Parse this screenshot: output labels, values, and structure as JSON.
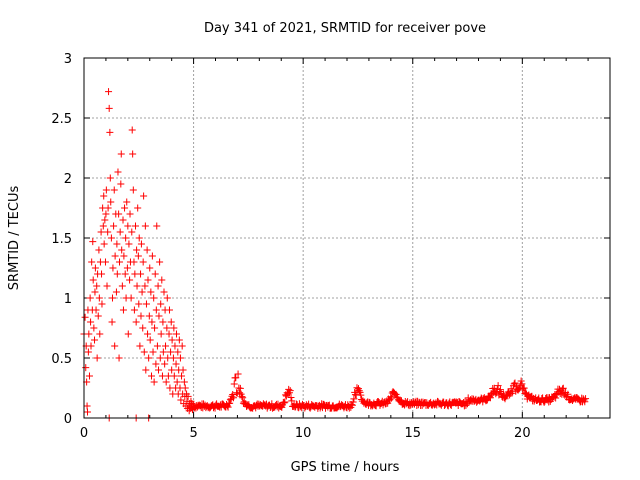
{
  "chart_data": {
    "type": "scatter",
    "title": "Day 341 of 2021, SRMTID for receiver pove",
    "xlabel": "GPS time / hours",
    "ylabel": "SRMTID / TECUs",
    "xlim": [
      0,
      24
    ],
    "ylim": [
      0,
      3
    ],
    "xticks": [
      0,
      5,
      10,
      15,
      20
    ],
    "xtick_labels": [
      "0",
      "5",
      "10",
      "15",
      "20"
    ],
    "yticks": [
      0,
      0.5,
      1,
      1.5,
      2,
      2.5,
      3
    ],
    "ytick_labels": [
      "0",
      "0.5",
      "1",
      "1.5",
      "2",
      "2.5",
      "3"
    ],
    "grid": true,
    "marker": "+",
    "color": "#ff0000",
    "series": [
      {
        "name": "SRMTID",
        "points": [
          [
            0.0,
            0.7
          ],
          [
            0.05,
            0.84
          ],
          [
            0.08,
            0.42
          ],
          [
            0.1,
            0.6
          ],
          [
            0.12,
            0.3
          ],
          [
            0.14,
            0.1
          ],
          [
            0.16,
            0.05
          ],
          [
            0.18,
            0.9
          ],
          [
            0.2,
            0.55
          ],
          [
            0.22,
            0.7
          ],
          [
            0.25,
            0.35
          ],
          [
            0.28,
            1.0
          ],
          [
            0.3,
            0.8
          ],
          [
            0.32,
            0.6
          ],
          [
            0.35,
            1.3
          ],
          [
            0.38,
            0.9
          ],
          [
            0.4,
            1.47
          ],
          [
            0.42,
            1.15
          ],
          [
            0.45,
            0.75
          ],
          [
            0.48,
            0.65
          ],
          [
            0.5,
            1.05
          ],
          [
            0.52,
            1.25
          ],
          [
            0.55,
            0.9
          ],
          [
            0.58,
            1.1
          ],
          [
            0.6,
            0.5
          ],
          [
            0.62,
            1.2
          ],
          [
            0.65,
            0.85
          ],
          [
            0.68,
            1.4
          ],
          [
            0.7,
            1.0
          ],
          [
            0.72,
            0.7
          ],
          [
            0.75,
            1.3
          ],
          [
            0.78,
            1.55
          ],
          [
            0.8,
            1.2
          ],
          [
            0.82,
            0.95
          ],
          [
            0.85,
            1.75
          ],
          [
            0.88,
            1.6
          ],
          [
            0.9,
            1.85
          ],
          [
            0.92,
            1.45
          ],
          [
            0.95,
            1.65
          ],
          [
            0.98,
            1.3
          ],
          [
            1.0,
            1.7
          ],
          [
            1.02,
            1.9
          ],
          [
            1.05,
            1.1
          ],
          [
            1.08,
            1.55
          ],
          [
            1.1,
            1.75
          ],
          [
            1.12,
            2.72
          ],
          [
            1.15,
            2.58
          ],
          [
            1.18,
            2.38
          ],
          [
            1.2,
            2.0
          ],
          [
            1.22,
            1.8
          ],
          [
            1.25,
            1.5
          ],
          [
            1.28,
            0.8
          ],
          [
            1.3,
            1.0
          ],
          [
            1.32,
            1.25
          ],
          [
            1.35,
            1.6
          ],
          [
            1.38,
            1.9
          ],
          [
            1.4,
            0.6
          ],
          [
            1.42,
            1.35
          ],
          [
            1.45,
            1.7
          ],
          [
            1.48,
            1.05
          ],
          [
            1.5,
            1.45
          ],
          [
            1.52,
            1.2
          ],
          [
            1.55,
            2.05
          ],
          [
            1.58,
            1.7
          ],
          [
            1.6,
            0.5
          ],
          [
            1.62,
            1.3
          ],
          [
            1.65,
            1.55
          ],
          [
            1.68,
            1.95
          ],
          [
            1.7,
            2.2
          ],
          [
            1.72,
            1.4
          ],
          [
            1.75,
            1.1
          ],
          [
            1.78,
            1.65
          ],
          [
            1.8,
            0.9
          ],
          [
            1.82,
            1.35
          ],
          [
            1.85,
            1.75
          ],
          [
            1.88,
            1.2
          ],
          [
            1.9,
            1.5
          ],
          [
            1.92,
            1.0
          ],
          [
            1.95,
            1.8
          ],
          [
            1.98,
            1.25
          ],
          [
            2.0,
            1.6
          ],
          [
            2.02,
            0.7
          ],
          [
            2.05,
            1.45
          ],
          [
            2.08,
            1.15
          ],
          [
            2.1,
            1.7
          ],
          [
            2.12,
            1.3
          ],
          [
            2.15,
            1.0
          ],
          [
            2.18,
            1.55
          ],
          [
            2.2,
            2.4
          ],
          [
            2.22,
            2.2
          ],
          [
            2.25,
            1.9
          ],
          [
            2.28,
            1.3
          ],
          [
            2.3,
            0.9
          ],
          [
            2.32,
            1.2
          ],
          [
            2.35,
            1.6
          ],
          [
            2.38,
            0.8
          ],
          [
            2.4,
            1.4
          ],
          [
            2.42,
            1.1
          ],
          [
            2.45,
            1.75
          ],
          [
            2.48,
            1.35
          ],
          [
            2.5,
            0.95
          ],
          [
            2.52,
            1.5
          ],
          [
            2.55,
            0.6
          ],
          [
            2.58,
            1.2
          ],
          [
            2.6,
            0.85
          ],
          [
            2.62,
            1.45
          ],
          [
            2.65,
            1.05
          ],
          [
            2.68,
            0.75
          ],
          [
            2.7,
            1.3
          ],
          [
            2.72,
            1.85
          ],
          [
            2.75,
            0.55
          ],
          [
            2.78,
            1.1
          ],
          [
            2.8,
            1.6
          ],
          [
            2.82,
            0.4
          ],
          [
            2.85,
            0.95
          ],
          [
            2.88,
            1.4
          ],
          [
            2.9,
            0.7
          ],
          [
            2.92,
            1.15
          ],
          [
            2.95,
            0.5
          ],
          [
            2.98,
            0.85
          ],
          [
            3.0,
            1.25
          ],
          [
            3.02,
            0.65
          ],
          [
            3.05,
            1.05
          ],
          [
            3.08,
            0.35
          ],
          [
            3.1,
            0.8
          ],
          [
            3.12,
            1.35
          ],
          [
            3.15,
            0.55
          ],
          [
            3.18,
            1.0
          ],
          [
            3.2,
            0.3
          ],
          [
            3.22,
            0.75
          ],
          [
            3.25,
            1.2
          ],
          [
            3.28,
            0.45
          ],
          [
            3.3,
            0.9
          ],
          [
            3.32,
            1.6
          ],
          [
            3.35,
            0.6
          ],
          [
            3.38,
            1.1
          ],
          [
            3.4,
            0.4
          ],
          [
            3.42,
            0.85
          ],
          [
            3.45,
            1.3
          ],
          [
            3.48,
            0.5
          ],
          [
            3.5,
            0.95
          ],
          [
            3.52,
            0.7
          ],
          [
            3.55,
            1.15
          ],
          [
            3.58,
            0.35
          ],
          [
            3.6,
            0.8
          ],
          [
            3.62,
            0.55
          ],
          [
            3.65,
            1.05
          ],
          [
            3.68,
            0.45
          ],
          [
            3.7,
            0.9
          ],
          [
            3.72,
            0.6
          ],
          [
            3.75,
            0.3
          ],
          [
            3.78,
            0.75
          ],
          [
            3.8,
            1.0
          ],
          [
            3.82,
            0.5
          ],
          [
            3.85,
            0.35
          ],
          [
            3.88,
            0.7
          ],
          [
            3.9,
            0.9
          ],
          [
            3.92,
            0.25
          ],
          [
            3.95,
            0.55
          ],
          [
            3.98,
            0.8
          ],
          [
            4.0,
            0.4
          ],
          [
            4.02,
            0.65
          ],
          [
            4.05,
            0.2
          ],
          [
            4.08,
            0.5
          ],
          [
            4.1,
            0.75
          ],
          [
            4.12,
            0.35
          ],
          [
            4.15,
            0.6
          ],
          [
            4.18,
            0.25
          ],
          [
            4.2,
            0.45
          ],
          [
            4.22,
            0.7
          ],
          [
            4.25,
            0.3
          ],
          [
            4.28,
            0.55
          ],
          [
            4.3,
            0.2
          ],
          [
            4.32,
            0.4
          ],
          [
            4.35,
            0.65
          ],
          [
            4.38,
            0.25
          ],
          [
            4.4,
            0.5
          ],
          [
            4.42,
            0.15
          ],
          [
            4.45,
            0.35
          ],
          [
            4.48,
            0.6
          ],
          [
            4.5,
            0.2
          ],
          [
            4.52,
            0.4
          ],
          [
            4.55,
            0.12
          ],
          [
            4.58,
            0.3
          ],
          [
            4.6,
            0.18
          ],
          [
            4.62,
            0.25
          ],
          [
            4.65,
            0.1
          ],
          [
            4.68,
            0.2
          ],
          [
            4.7,
            0.14
          ],
          [
            4.72,
            0.08
          ],
          [
            4.75,
            0.18
          ],
          [
            4.78,
            0.1
          ],
          [
            4.8,
            0.06
          ],
          [
            4.82,
            0.12
          ],
          [
            4.85,
            0.08
          ],
          [
            4.88,
            0.14
          ],
          [
            4.9,
            0.09
          ],
          [
            4.92,
            0.12
          ],
          [
            4.95,
            0.07
          ],
          [
            4.98,
            0.11
          ],
          [
            2.38,
            0.0
          ],
          [
            1.15,
            0.0
          ],
          [
            2.95,
            0.0
          ]
        ]
      }
    ]
  }
}
